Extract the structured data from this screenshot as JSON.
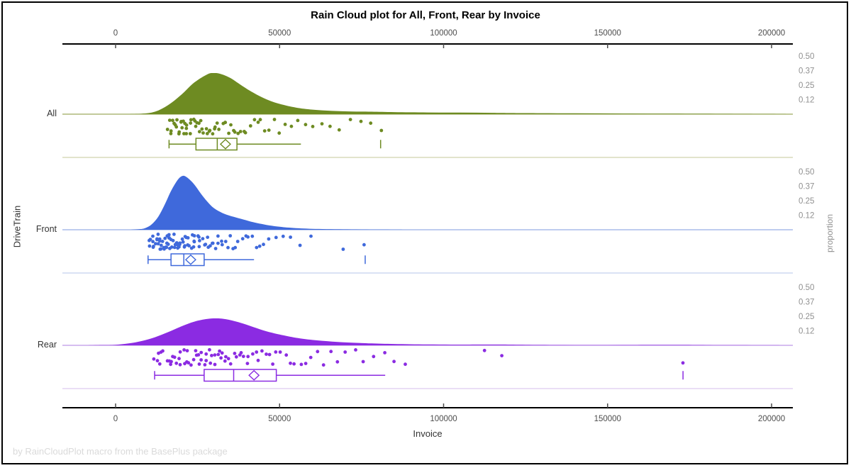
{
  "title": "Rain Cloud plot for All, Front, Rear by Invoice",
  "footer": "by RainCloudPlot macro from the BasePlus package",
  "x_axis": {
    "label": "Invoice",
    "ticks": [
      {
        "label": "0",
        "value": 0
      },
      {
        "label": "50000",
        "value": 50000
      },
      {
        "label": "100000",
        "value": 100000
      },
      {
        "label": "150000",
        "value": 150000
      },
      {
        "label": "200000",
        "value": 200000
      }
    ],
    "range": [
      0,
      200000
    ]
  },
  "y_axis": {
    "label": "DriveTrain"
  },
  "proportion_axis": {
    "label": "proportion",
    "tick_labels": [
      "0.50",
      "0.37",
      "0.25",
      "0.12"
    ]
  },
  "chart_data": {
    "type": "raincloud",
    "x_range": [
      0,
      200000
    ],
    "groups": [
      {
        "name": "All",
        "color": "#6E8B22",
        "baseline_color": "#ADB878",
        "separator_color": "#D8DCBC",
        "density": [
          [
            4000,
            0
          ],
          [
            8000,
            0.01
          ],
          [
            12000,
            0.06
          ],
          [
            16000,
            0.22
          ],
          [
            20000,
            0.47
          ],
          [
            24000,
            0.77
          ],
          [
            28000,
            0.97
          ],
          [
            30000,
            1
          ],
          [
            32000,
            0.98
          ],
          [
            35000,
            0.88
          ],
          [
            38000,
            0.72
          ],
          [
            42000,
            0.52
          ],
          [
            46000,
            0.36
          ],
          [
            50000,
            0.25
          ],
          [
            55000,
            0.16
          ],
          [
            60000,
            0.11
          ],
          [
            66000,
            0.08
          ],
          [
            72000,
            0.065
          ],
          [
            78000,
            0.06
          ],
          [
            85000,
            0.05
          ],
          [
            95000,
            0.042
          ],
          [
            105000,
            0.038
          ],
          [
            115000,
            0.032
          ],
          [
            125000,
            0.026
          ],
          [
            140000,
            0.02
          ],
          [
            155000,
            0.016
          ],
          [
            170000,
            0.012
          ],
          [
            185000,
            0.008
          ],
          [
            198000,
            0.004
          ],
          [
            205000,
            0
          ]
        ],
        "points": [
          16200,
          16500,
          16900,
          17200,
          17500,
          17800,
          18100,
          18400,
          18700,
          19000,
          19300,
          19600,
          19900,
          20200,
          20500,
          20800,
          21100,
          21400,
          21700,
          22000,
          22400,
          22800,
          23200,
          23600,
          24000,
          24400,
          24800,
          25200,
          25600,
          26000,
          26500,
          27000,
          27500,
          28000,
          28500,
          29000,
          29500,
          30000,
          30600,
          31200,
          31800,
          32400,
          33000,
          33700,
          34400,
          35100,
          35800,
          36600,
          37400,
          38200,
          39100,
          40000,
          41000,
          42000,
          43100,
          44300,
          45600,
          47000,
          48500,
          50000,
          51700,
          53500,
          55500,
          57600,
          60000,
          62500,
          65500,
          68500,
          71500,
          74500,
          78000,
          80800
        ],
        "box": {
          "whisker_low": 16300,
          "q1": 24500,
          "median": 31000,
          "q3": 37000,
          "whisker_high": 56500,
          "mean": 33500,
          "outliers": [
            80800
          ]
        }
      },
      {
        "name": "Front",
        "color": "#3F69DB",
        "baseline_color": "#A8BCEA",
        "separator_color": "#CDD8F2",
        "density": [
          [
            4000,
            0
          ],
          [
            7000,
            0.01
          ],
          [
            9000,
            0.03
          ],
          [
            11000,
            0.1
          ],
          [
            13000,
            0.24
          ],
          [
            15000,
            0.47
          ],
          [
            17000,
            0.73
          ],
          [
            19000,
            0.93
          ],
          [
            20500,
            1
          ],
          [
            22000,
            0.96
          ],
          [
            24000,
            0.84
          ],
          [
            26000,
            0.67
          ],
          [
            28000,
            0.52
          ],
          [
            30000,
            0.4
          ],
          [
            33000,
            0.3
          ],
          [
            36000,
            0.24
          ],
          [
            39000,
            0.19
          ],
          [
            42000,
            0.14
          ],
          [
            46000,
            0.09
          ],
          [
            50000,
            0.055
          ],
          [
            55000,
            0.03
          ],
          [
            62000,
            0.015
          ],
          [
            72000,
            0.007
          ],
          [
            82000,
            0.003
          ],
          [
            88000,
            0
          ]
        ],
        "points": [
          9900,
          10300,
          10700,
          11000,
          11300,
          11600,
          11900,
          12200,
          12400,
          12600,
          12800,
          13000,
          13200,
          13400,
          13600,
          13800,
          14000,
          14200,
          14400,
          14600,
          14800,
          15000,
          15200,
          15400,
          15600,
          15800,
          16000,
          16200,
          16400,
          16600,
          16800,
          17000,
          17200,
          17500,
          17700,
          17900,
          18100,
          18400,
          18600,
          18900,
          19100,
          19400,
          19600,
          19900,
          20100,
          20400,
          20700,
          21000,
          21300,
          21600,
          21900,
          22200,
          22500,
          22800,
          23100,
          23400,
          23700,
          24000,
          24400,
          24800,
          25200,
          25600,
          26000,
          26400,
          26800,
          27200,
          27700,
          28200,
          28700,
          29200,
          29700,
          30300,
          30900,
          31500,
          32100,
          32800,
          33500,
          34200,
          35000,
          35800,
          36600,
          37500,
          38400,
          39400,
          40500,
          41600,
          42800,
          44000,
          45500,
          47000,
          49000,
          51000,
          53500,
          56500,
          59500,
          69200,
          76100
        ],
        "box": {
          "whisker_low": 9900,
          "q1": 16900,
          "median": 20800,
          "q3": 27000,
          "whisker_high": 42200,
          "mean": 22900,
          "outliers": [
            76100
          ]
        }
      },
      {
        "name": "Rear",
        "color": "#8B2BE2",
        "baseline_color": "#C9A9EC",
        "separator_color": "#E3D3F4",
        "density": [
          [
            -9000,
            0
          ],
          [
            -4000,
            0.01
          ],
          [
            0,
            0.02
          ],
          [
            4000,
            0.07
          ],
          [
            8000,
            0.16
          ],
          [
            12000,
            0.3
          ],
          [
            16000,
            0.49
          ],
          [
            20000,
            0.7
          ],
          [
            24000,
            0.88
          ],
          [
            28000,
            0.98
          ],
          [
            31000,
            1
          ],
          [
            34000,
            0.96
          ],
          [
            38000,
            0.84
          ],
          [
            42000,
            0.68
          ],
          [
            46000,
            0.52
          ],
          [
            50000,
            0.4
          ],
          [
            55000,
            0.28
          ],
          [
            60000,
            0.2
          ],
          [
            66000,
            0.14
          ],
          [
            72000,
            0.1
          ],
          [
            78000,
            0.07
          ],
          [
            85000,
            0.05
          ],
          [
            95000,
            0.032
          ],
          [
            105000,
            0.026
          ],
          [
            112000,
            0.03
          ],
          [
            118000,
            0.028
          ],
          [
            125000,
            0.02
          ],
          [
            135000,
            0.013
          ],
          [
            145000,
            0.01
          ],
          [
            155000,
            0.012
          ],
          [
            165000,
            0.016
          ],
          [
            172000,
            0.017
          ],
          [
            180000,
            0.01
          ],
          [
            190000,
            0.005
          ],
          [
            200000,
            0.002
          ],
          [
            207000,
            0
          ]
        ],
        "points": [
          11900,
          12500,
          13000,
          13600,
          14200,
          14800,
          15400,
          16000,
          16500,
          17000,
          17500,
          18000,
          18500,
          19000,
          19500,
          20000,
          20500,
          21000,
          21500,
          22000,
          22500,
          23000,
          23500,
          24000,
          24500,
          25000,
          25500,
          26000,
          26500,
          27000,
          27500,
          28000,
          28500,
          29000,
          29500,
          30000,
          30500,
          31000,
          31600,
          32200,
          32800,
          33400,
          34000,
          34700,
          35400,
          36100,
          36800,
          37500,
          38300,
          39100,
          39900,
          40800,
          41700,
          42600,
          43600,
          44600,
          45700,
          46800,
          48000,
          49200,
          50500,
          51800,
          53200,
          54700,
          56300,
          58000,
          59800,
          61700,
          63700,
          65800,
          68000,
          70400,
          73000,
          75700,
          78600,
          81700,
          85000,
          88300,
          112900,
          117800,
          173000
        ],
        "box": {
          "whisker_low": 11900,
          "q1": 27000,
          "median": 36000,
          "q3": 49000,
          "whisker_high": 82200,
          "mean": 42200,
          "outliers": [
            173000
          ]
        }
      }
    ]
  }
}
